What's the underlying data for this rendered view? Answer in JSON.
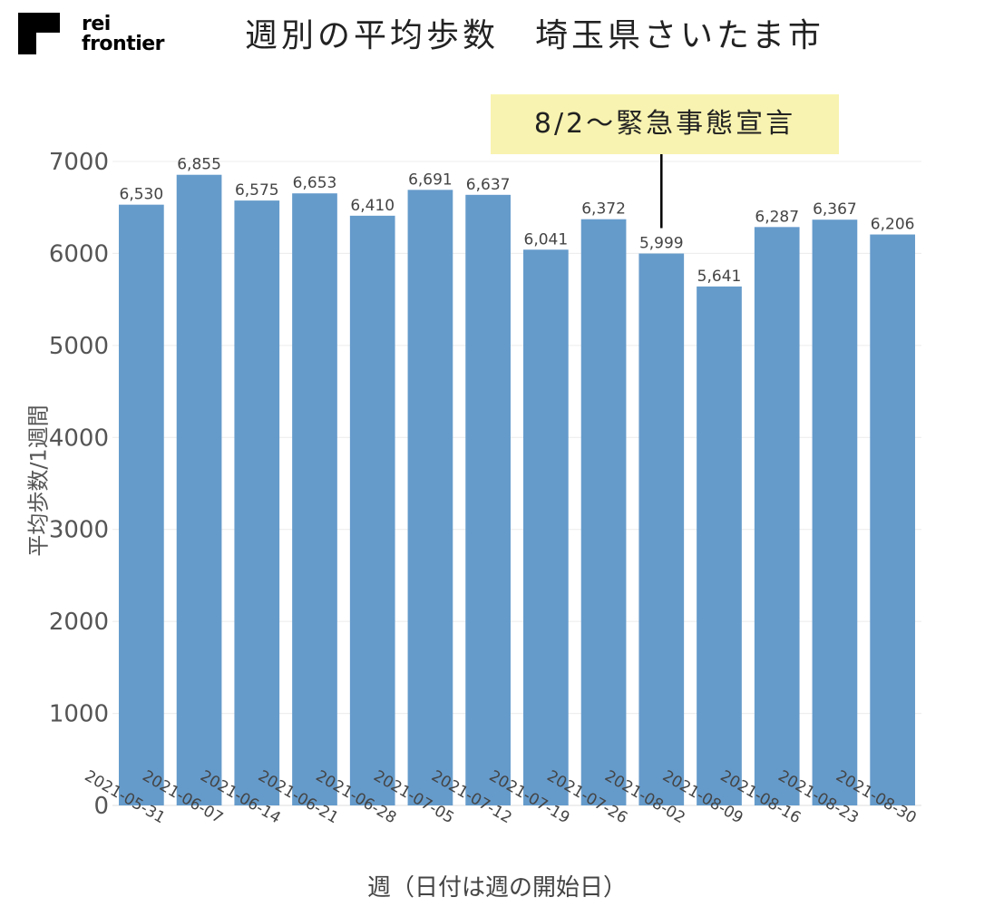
{
  "brand": {
    "line1": "rei",
    "line2": "frontier",
    "logo_color": "#000000"
  },
  "chart_data": {
    "type": "bar",
    "title": "週別の平均歩数　埼玉県さいたま市",
    "xlabel": "週（日付は週の開始日）",
    "ylabel": "平均歩数/1週間",
    "categories": [
      "2021-05-31",
      "2021-06-07",
      "2021-06-14",
      "2021-06-21",
      "2021-06-28",
      "2021-07-05",
      "2021-07-12",
      "2021-07-19",
      "2021-07-26",
      "2021-08-02",
      "2021-08-09",
      "2021-08-16",
      "2021-08-23",
      "2021-08-30"
    ],
    "values": [
      6530,
      6855,
      6575,
      6653,
      6410,
      6691,
      6637,
      6041,
      6372,
      5999,
      5641,
      6287,
      6367,
      6206
    ],
    "data_labels": [
      "6,530",
      "6,855",
      "6,575",
      "6,653",
      "6,410",
      "6,691",
      "6,637",
      "6,041",
      "6,372",
      "5,999",
      "5,641",
      "6,287",
      "6,367",
      "6,206"
    ],
    "ylim": [
      0,
      7000
    ],
    "yticks": [
      0,
      1000,
      2000,
      3000,
      4000,
      5000,
      6000,
      7000
    ],
    "grid": true,
    "bar_color": "#659bcb",
    "annotation": {
      "text": "8/2〜緊急事態宣言",
      "category": "2021-08-02",
      "box_color": "#f8f3b0"
    }
  }
}
